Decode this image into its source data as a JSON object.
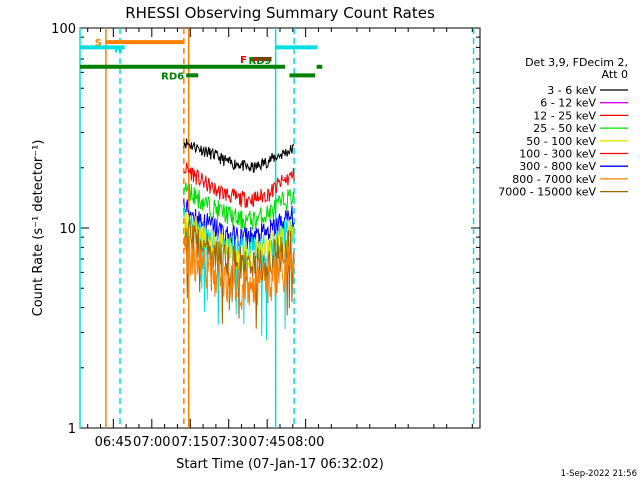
{
  "chart_data": {
    "type": "line",
    "title": "RHESSI Observing Summary Count Rates",
    "xlabel": "Start Time (07-Jan-17 06:32:02)",
    "ylabel": "Count Rate (s⁻¹ detector⁻¹)",
    "yscale": "log",
    "ylim": [
      1,
      100
    ],
    "xlim_minutes": [
      392,
      548
    ],
    "x_ticks": [
      {
        "label": "06:45",
        "minute": 405
      },
      {
        "label": "07:00",
        "minute": 420
      },
      {
        "label": "07:15",
        "minute": 435
      },
      {
        "label": "07:30",
        "minute": 450
      },
      {
        "label": "07:45",
        "minute": 465
      },
      {
        "label": "08:00",
        "minute": 480
      }
    ],
    "y_ticks": [
      {
        "label": "1",
        "value": 1
      },
      {
        "label": "10",
        "value": 10
      },
      {
        "label": "100",
        "value": 100
      }
    ],
    "data_window_minutes": [
      432.5,
      475.5
    ],
    "legend": {
      "placement": "right",
      "header": [
        "Det 3,9, FDecim 2,",
        "Att 0"
      ],
      "entries": [
        {
          "label": "3 - 6 keV",
          "color": "#000000"
        },
        {
          "label": "6 - 12 keV",
          "color": "#e000e0"
        },
        {
          "label": "12 - 25 keV",
          "color": "#ff0000"
        },
        {
          "label": "25 - 50 keV",
          "color": "#00e000"
        },
        {
          "label": "50 - 100 keV",
          "color": "#e6e600"
        },
        {
          "label": "100 - 300 keV",
          "color": "#ff0000"
        },
        {
          "label": "300 - 800 keV",
          "color": "#0000ff"
        },
        {
          "label": "800 - 7000 keV",
          "color": "#ff8000"
        },
        {
          "label": "7000 - 15000 keV",
          "color": "#a06400"
        }
      ]
    },
    "series": [
      {
        "color": "#000000",
        "values": [
          27,
          26,
          25,
          24,
          23,
          22,
          21,
          21,
          20,
          20,
          21,
          22,
          23,
          24,
          25
        ]
      },
      {
        "color": "#ff0000",
        "values": [
          20,
          19,
          17.5,
          16.5,
          15.5,
          15,
          14.5,
          14,
          14,
          14,
          14.5,
          15,
          16.5,
          17.5,
          18.5
        ]
      },
      {
        "color": "#00e000",
        "values": [
          16,
          15,
          14,
          13,
          12.5,
          12,
          11.5,
          11,
          11,
          11,
          11.5,
          12,
          13,
          14,
          14.5
        ]
      },
      {
        "color": "#0000ff",
        "values": [
          12.5,
          12,
          11,
          10.5,
          10,
          9.5,
          9,
          9,
          9,
          9,
          9.2,
          9.6,
          10.5,
          11,
          11.5
        ]
      },
      {
        "color": "#00e0e0",
        "values": [
          11,
          10.5,
          9.8,
          9.2,
          8.6,
          8.2,
          8,
          7.8,
          7.7,
          7.8,
          8,
          8.4,
          9,
          9.6,
          10
        ]
      },
      {
        "color": "#e6e600",
        "values": [
          10.5,
          10,
          9.3,
          8.8,
          8.3,
          7.9,
          7.6,
          7.4,
          7.3,
          7.4,
          7.6,
          8,
          8.5,
          9,
          9.5
        ]
      },
      {
        "color": "#a06400",
        "values": [
          9.5,
          9,
          8.4,
          7.9,
          7.4,
          7,
          6.8,
          6.6,
          6.5,
          6.6,
          6.8,
          7.1,
          7.5,
          8,
          8.4
        ]
      },
      {
        "color": "#ff8000",
        "values": [
          8,
          7.4,
          6.8,
          6.3,
          5.9,
          5.6,
          5.4,
          5.2,
          5.1,
          5.2,
          5.4,
          5.6,
          6,
          6.4,
          6.8
        ]
      }
    ],
    "vertical_lines": [
      {
        "minute": 392,
        "color": "#00e0e0",
        "style": "solid"
      },
      {
        "minute": 402.1,
        "color": "#ff8000",
        "style": "solid"
      },
      {
        "minute": 407.6,
        "color": "#00e0e0",
        "style": "dashed"
      },
      {
        "minute": 432.5,
        "color": "#ff8000",
        "style": "dashed"
      },
      {
        "minute": 434.4,
        "color": "#ff8000",
        "style": "solid"
      },
      {
        "minute": 468.3,
        "color": "#00e0e0",
        "style": "solid"
      },
      {
        "minute": 475.5,
        "color": "#00e0e0",
        "style": "dashed"
      },
      {
        "minute": 545.5,
        "color": "#00e0e0",
        "style": "dashed"
      }
    ],
    "flag_bars": [
      {
        "label": "S",
        "color": "#ff8000",
        "start": 402.1,
        "end": 432.5,
        "level": 85
      },
      {
        "label": "N",
        "color": "#00e0e0",
        "start": 392,
        "end": 409.4,
        "level": 80
      },
      {
        "label": "",
        "color": "#00e0e0",
        "start": 468.3,
        "end": 484.5,
        "level": 80
      },
      {
        "label": "F",
        "color": "#ff0000",
        "start": 458.7,
        "end": 466.7,
        "level": 70
      },
      {
        "label": "RD9",
        "color": "#008000",
        "start": 392,
        "end": 472,
        "level": 64
      },
      {
        "label": "",
        "color": "#008000",
        "start": 484.3,
        "end": 486.5,
        "level": 64
      },
      {
        "label": "RD6",
        "color": "#008000",
        "start": 433.4,
        "end": 438.1,
        "level": 58
      },
      {
        "label": "",
        "color": "#008000",
        "start": 473.7,
        "end": 483.7,
        "level": 58
      }
    ]
  },
  "footer_timestamp": "1-Sep-2022 21:56"
}
